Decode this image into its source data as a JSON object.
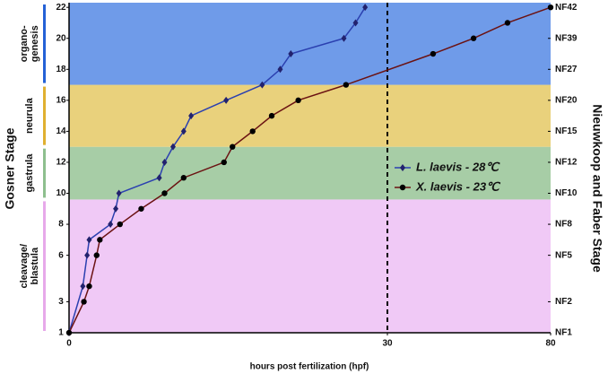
{
  "chart_data": {
    "type": "line",
    "xlabel": "hours post fertilization (hpf)",
    "ylabel": "Gosner Stage",
    "y2label": "Nieuwkoop and Faber Stage",
    "xlim": [
      0,
      80
    ],
    "xticks": [
      0,
      30,
      80
    ],
    "ylim": [
      1,
      22.3
    ],
    "yticks": [
      1,
      3,
      6,
      8,
      10,
      12,
      14,
      16,
      18,
      20,
      22
    ],
    "y2lim": [
      1,
      22.3
    ],
    "y2ticks": [
      {
        "value": 1,
        "label": "NF1"
      },
      {
        "value": 3,
        "label": "NF2"
      },
      {
        "value": 6,
        "label": "NF5"
      },
      {
        "value": 8,
        "label": "NF8"
      },
      {
        "value": 10,
        "label": "NF10"
      },
      {
        "value": 12,
        "label": "NF12"
      },
      {
        "value": 14,
        "label": "NF15"
      },
      {
        "value": 16,
        "label": "NF20"
      },
      {
        "value": 18,
        "label": "NF27"
      },
      {
        "value": 20,
        "label": "NF39"
      },
      {
        "value": 22,
        "label": "NF42"
      }
    ],
    "stages": [
      {
        "label_lines": [
          "cleavage/",
          "blastula"
        ],
        "from": 1,
        "to": 9.6,
        "color": "#f0c9f6",
        "bar_color": "#e7a9ea"
      },
      {
        "label_lines": [
          "gastrula"
        ],
        "from": 9.6,
        "to": 13,
        "color": "#a7cda6",
        "bar_color": "#8ebf8e"
      },
      {
        "label_lines": [
          "neurula"
        ],
        "from": 13,
        "to": 17,
        "color": "#e9d17c",
        "bar_color": "#e0b030"
      },
      {
        "label_lines": [
          "organo-",
          "genesis"
        ],
        "from": 17,
        "to": 22.3,
        "color": "#6f9be9",
        "bar_color": "#2461d6"
      }
    ],
    "legend": "right",
    "series": [
      {
        "name": "L. laevis - 28℃",
        "color": "#2b40b0",
        "marker": "diamond",
        "marker_color": "#22226e",
        "x": [
          0,
          1.3,
          1.7,
          1.9,
          3.9,
          4.4,
          4.7,
          8.5,
          9,
          9.8,
          10.8,
          11.5,
          14.8,
          18.2,
          19.9,
          20.9,
          25.9,
          27,
          27.9
        ],
        "values": [
          1,
          4,
          6,
          7,
          8,
          9,
          10,
          11,
          12,
          13,
          14,
          15,
          16,
          17,
          18,
          19,
          20,
          21,
          22
        ]
      },
      {
        "name": "X. laevis - 23℃",
        "color": "#6b1212",
        "marker": "circle",
        "marker_color": "#000000",
        "x": [
          0,
          1.4,
          1.9,
          2.6,
          2.9,
          4.8,
          6.8,
          9,
          10.8,
          14.6,
          15.4,
          17.3,
          19.1,
          21.6,
          26.1,
          44,
          56.4,
          66.8,
          80
        ],
        "values": [
          1,
          3,
          4,
          6,
          7,
          8,
          9,
          10,
          11,
          12,
          13,
          14,
          15,
          16,
          17,
          19,
          20,
          21,
          22
        ]
      }
    ]
  }
}
